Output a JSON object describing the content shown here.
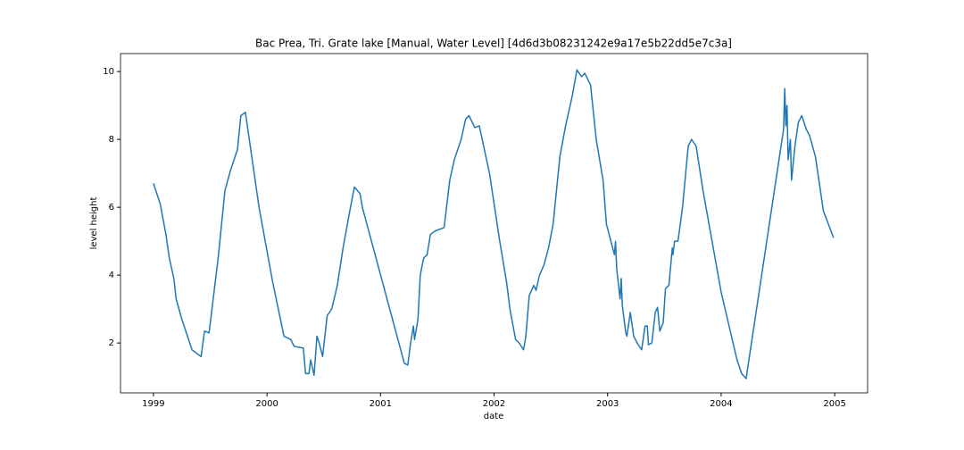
{
  "chart_data": {
    "type": "line",
    "title": "Bac Prea, Tri. Grate lake [Manual, Water Level] [4d6d3b08231242e9a17e5b22dd5e7c3a]",
    "xlabel": "date",
    "ylabel": "level height",
    "xlim": [
      1998.71,
      2005.29
    ],
    "ylim": [
      0.53,
      10.53
    ],
    "xticks": [
      1999,
      2000,
      2001,
      2002,
      2003,
      2004,
      2005
    ],
    "yticks": [
      2,
      4,
      6,
      8,
      10
    ],
    "grid": false,
    "series": [
      {
        "name": "level height",
        "color": "#1f77b4",
        "x": [
          1999.0,
          1999.06,
          1999.11,
          1999.14,
          1999.18,
          1999.2,
          1999.25,
          1999.3,
          1999.34,
          1999.38,
          1999.42,
          1999.45,
          1999.49,
          1999.57,
          1999.63,
          1999.68,
          1999.74,
          1999.77,
          1999.81,
          1999.93,
          2000.05,
          2000.15,
          2000.21,
          2000.24,
          2000.32,
          2000.34,
          2000.37,
          2000.385,
          2000.415,
          2000.44,
          2000.46,
          2000.49,
          2000.53,
          2000.57,
          2000.62,
          2000.67,
          2000.73,
          2000.77,
          2000.82,
          2000.84,
          2001.21,
          2001.24,
          2001.265,
          2001.29,
          2001.3,
          2001.33,
          2001.35,
          2001.38,
          2001.41,
          2001.44,
          2001.48,
          2001.56,
          2001.61,
          2001.65,
          2001.71,
          2001.75,
          2001.78,
          2001.83,
          2001.87,
          2001.96,
          2002.05,
          2002.11,
          2002.14,
          2002.19,
          2002.22,
          2002.26,
          2002.28,
          2002.31,
          2002.35,
          2002.37,
          2002.4,
          2002.44,
          2002.48,
          2002.52,
          2002.58,
          2002.63,
          2002.69,
          2002.73,
          2002.77,
          2002.8,
          2002.85,
          2002.9,
          2002.96,
          2002.99,
          2003.06,
          2003.07,
          2003.08,
          2003.11,
          2003.12,
          2003.13,
          2003.16,
          2003.17,
          2003.2,
          2003.23,
          2003.26,
          2003.3,
          2003.33,
          2003.35,
          2003.36,
          2003.39,
          2003.42,
          2003.44,
          2003.46,
          2003.49,
          2003.51,
          2003.54,
          2003.57,
          2003.575,
          2003.59,
          2003.62,
          2003.66,
          2003.71,
          2003.74,
          2003.78,
          2003.84,
          2003.92,
          2004.0,
          2004.07,
          2004.14,
          2004.18,
          2004.22,
          2004.55,
          2004.56,
          2004.57,
          2004.58,
          2004.59,
          2004.61,
          2004.62,
          2004.65,
          2004.68,
          2004.71,
          2004.75,
          2004.78,
          2004.83,
          2004.87,
          2004.9,
          2004.99
        ],
        "values": [
          6.7,
          6.1,
          5.2,
          4.5,
          3.9,
          3.3,
          2.7,
          2.2,
          1.8,
          1.7,
          1.6,
          2.35,
          2.3,
          4.5,
          6.5,
          7.1,
          7.7,
          8.7,
          8.8,
          6.0,
          3.8,
          2.2,
          2.1,
          1.9,
          1.85,
          1.1,
          1.1,
          1.5,
          1.05,
          2.2,
          2.0,
          1.6,
          2.8,
          3.0,
          3.7,
          4.8,
          5.9,
          6.6,
          6.4,
          6.0,
          1.4,
          1.35,
          2.0,
          2.5,
          2.1,
          2.7,
          4.0,
          4.5,
          4.6,
          5.2,
          5.3,
          5.4,
          6.8,
          7.4,
          8.0,
          8.6,
          8.7,
          8.35,
          8.4,
          7.0,
          5.0,
          3.8,
          3.0,
          2.1,
          2.0,
          1.8,
          2.2,
          3.4,
          3.7,
          3.55,
          4.0,
          4.3,
          4.8,
          5.5,
          7.5,
          8.4,
          9.3,
          10.05,
          9.85,
          9.95,
          9.6,
          8.0,
          6.8,
          5.5,
          4.6,
          5.0,
          4.2,
          3.3,
          3.9,
          3.1,
          2.3,
          2.2,
          2.9,
          2.2,
          2.0,
          1.8,
          2.5,
          2.5,
          1.95,
          2.0,
          2.9,
          3.05,
          2.35,
          2.6,
          3.6,
          3.7,
          4.8,
          4.6,
          5.0,
          5.0,
          6.0,
          7.8,
          8.0,
          7.8,
          6.5,
          5.0,
          3.5,
          2.5,
          1.5,
          1.1,
          0.95,
          8.3,
          9.5,
          8.4,
          9.0,
          7.4,
          8.0,
          6.8,
          7.8,
          8.5,
          8.7,
          8.3,
          8.1,
          7.5,
          6.6,
          5.9,
          5.1
        ]
      }
    ]
  }
}
